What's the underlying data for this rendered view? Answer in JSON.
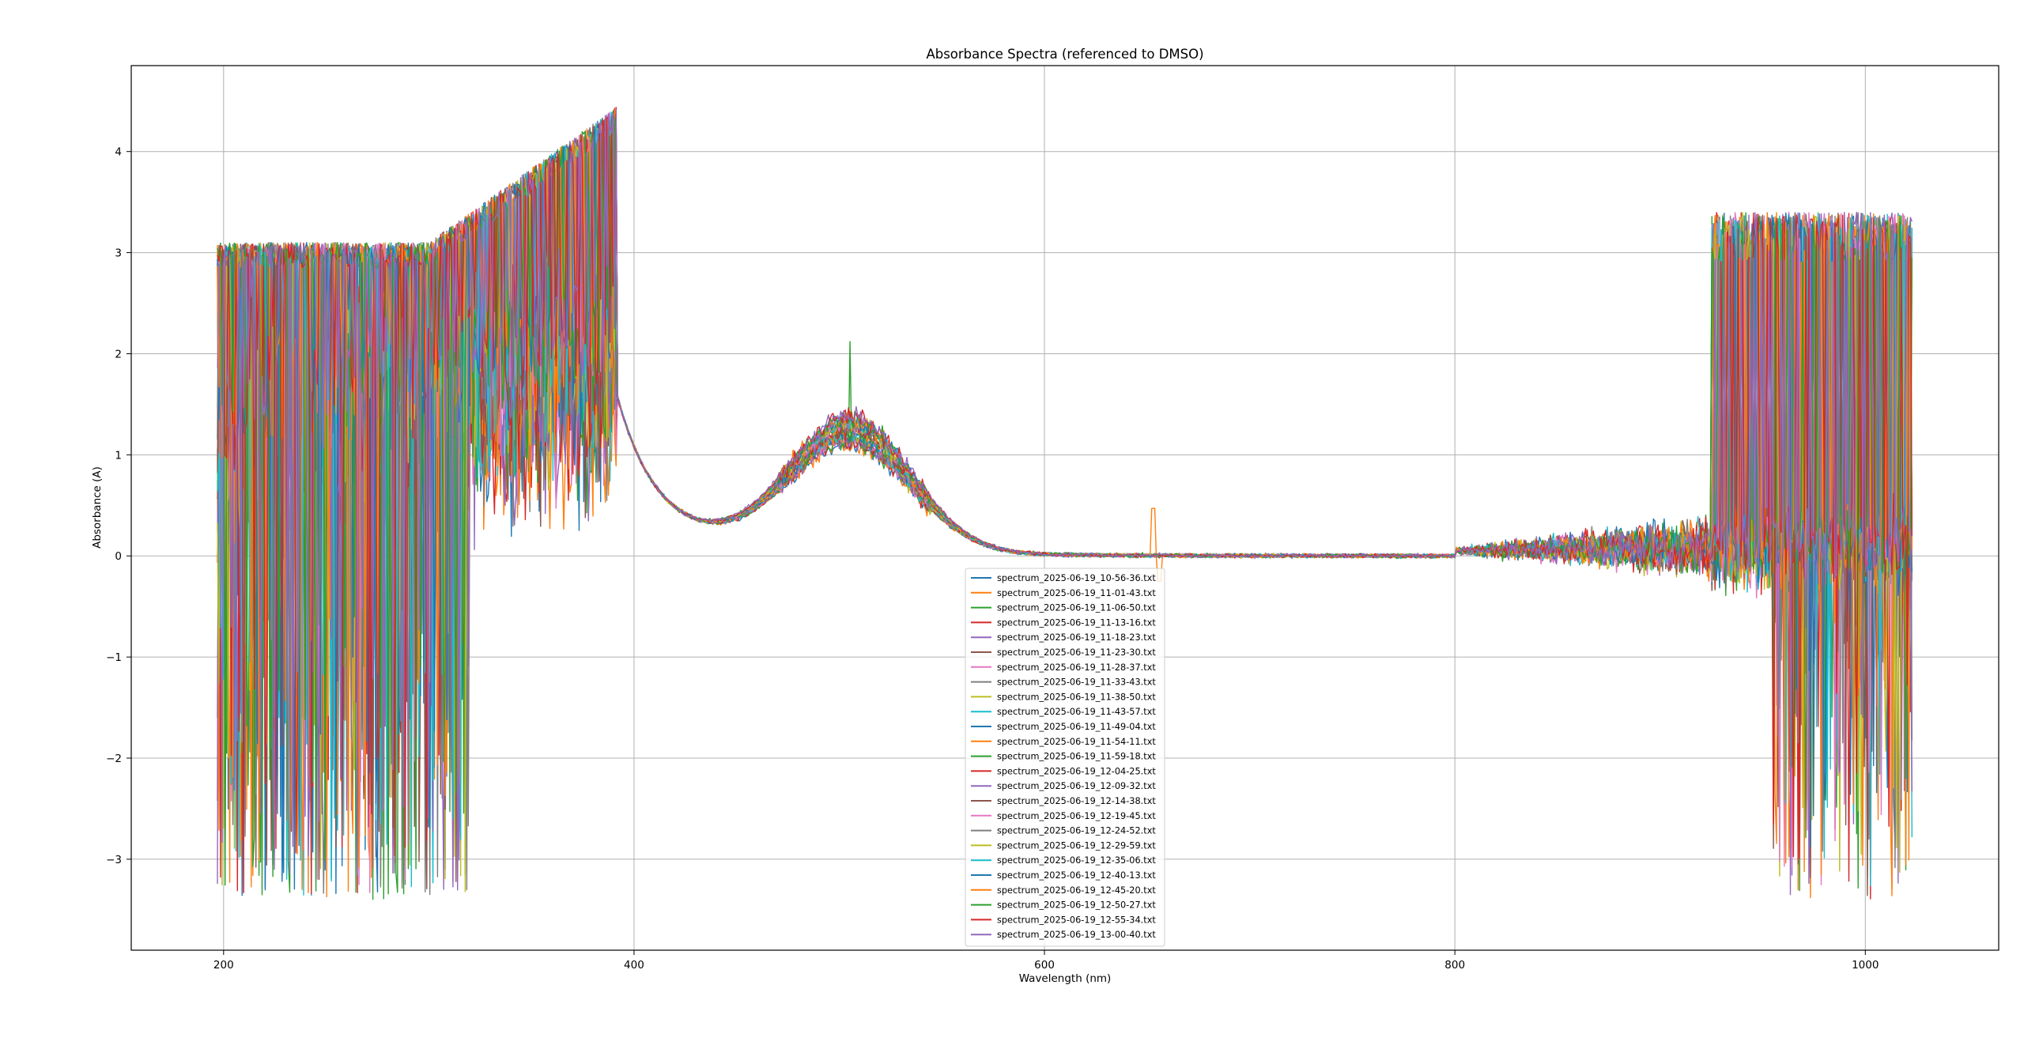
{
  "chart_data": {
    "type": "line",
    "title": "Absorbance Spectra (referenced to DMSO)",
    "xlabel": "Wavelength (nm)",
    "ylabel": "Absorbance (A)",
    "xlim": [
      155,
      1065
    ],
    "ylim": [
      -3.9,
      4.85
    ],
    "xticks": [
      200,
      400,
      600,
      800,
      1000
    ],
    "yticks": [
      -3,
      -2,
      -1,
      0,
      1,
      2,
      3,
      4
    ],
    "xtick_labels": [
      "200",
      "400",
      "600",
      "800",
      "1000"
    ],
    "ytick_labels": [
      "−3",
      "−2",
      "−1",
      "0",
      "1",
      "2",
      "3",
      "4"
    ],
    "grid": true,
    "legend_position": "lower center",
    "x_range_data": [
      197,
      1023
    ],
    "series": [
      {
        "name": "spectrum_2025-06-19_10-56-36.txt",
        "color": "#1f77b4"
      },
      {
        "name": "spectrum_2025-06-19_11-01-43.txt",
        "color": "#ff7f0e"
      },
      {
        "name": "spectrum_2025-06-19_11-06-50.txt",
        "color": "#2ca02c"
      },
      {
        "name": "spectrum_2025-06-19_11-13-16.txt",
        "color": "#d62728"
      },
      {
        "name": "spectrum_2025-06-19_11-18-23.txt",
        "color": "#9467bd"
      },
      {
        "name": "spectrum_2025-06-19_11-23-30.txt",
        "color": "#8c564b"
      },
      {
        "name": "spectrum_2025-06-19_11-28-37.txt",
        "color": "#e377c2"
      },
      {
        "name": "spectrum_2025-06-19_11-33-43.txt",
        "color": "#7f7f7f"
      },
      {
        "name": "spectrum_2025-06-19_11-38-50.txt",
        "color": "#bcbd22"
      },
      {
        "name": "spectrum_2025-06-19_11-43-57.txt",
        "color": "#17becf"
      },
      {
        "name": "spectrum_2025-06-19_11-49-04.txt",
        "color": "#1f77b4"
      },
      {
        "name": "spectrum_2025-06-19_11-54-11.txt",
        "color": "#ff7f0e"
      },
      {
        "name": "spectrum_2025-06-19_11-59-18.txt",
        "color": "#2ca02c"
      },
      {
        "name": "spectrum_2025-06-19_12-04-25.txt",
        "color": "#d62728"
      },
      {
        "name": "spectrum_2025-06-19_12-09-32.txt",
        "color": "#9467bd"
      },
      {
        "name": "spectrum_2025-06-19_12-14-38.txt",
        "color": "#8c564b"
      },
      {
        "name": "spectrum_2025-06-19_12-19-45.txt",
        "color": "#e377c2"
      },
      {
        "name": "spectrum_2025-06-19_12-24-52.txt",
        "color": "#7f7f7f"
      },
      {
        "name": "spectrum_2025-06-19_12-29-59.txt",
        "color": "#bcbd22"
      },
      {
        "name": "spectrum_2025-06-19_12-35-06.txt",
        "color": "#17becf"
      },
      {
        "name": "spectrum_2025-06-19_12-40-13.txt",
        "color": "#1f77b4"
      },
      {
        "name": "spectrum_2025-06-19_12-45-20.txt",
        "color": "#ff7f0e"
      },
      {
        "name": "spectrum_2025-06-19_12-50-27.txt",
        "color": "#2ca02c"
      },
      {
        "name": "spectrum_2025-06-19_12-55-34.txt",
        "color": "#d62728"
      },
      {
        "name": "spectrum_2025-06-19_13-00-40.txt",
        "color": "#9467bd"
      }
    ],
    "spectral_features": {
      "uv_rising_band_peak": {
        "x": 392,
        "y": 4.45
      },
      "visible_band_peak": {
        "x": 505,
        "y": 1.3
      },
      "visible_band_spike": {
        "x": 505,
        "y": 2.12
      },
      "minimum_between_bands": {
        "x": 430,
        "y": 0.25
      },
      "artifact_spike": {
        "x": 656,
        "y": 0.47
      },
      "noisy_region_low_end_nm": [
        197,
        392
      ],
      "noisy_region_high_end_nm": [
        925,
        1023
      ],
      "noise_floor_min": -3.5
    }
  }
}
